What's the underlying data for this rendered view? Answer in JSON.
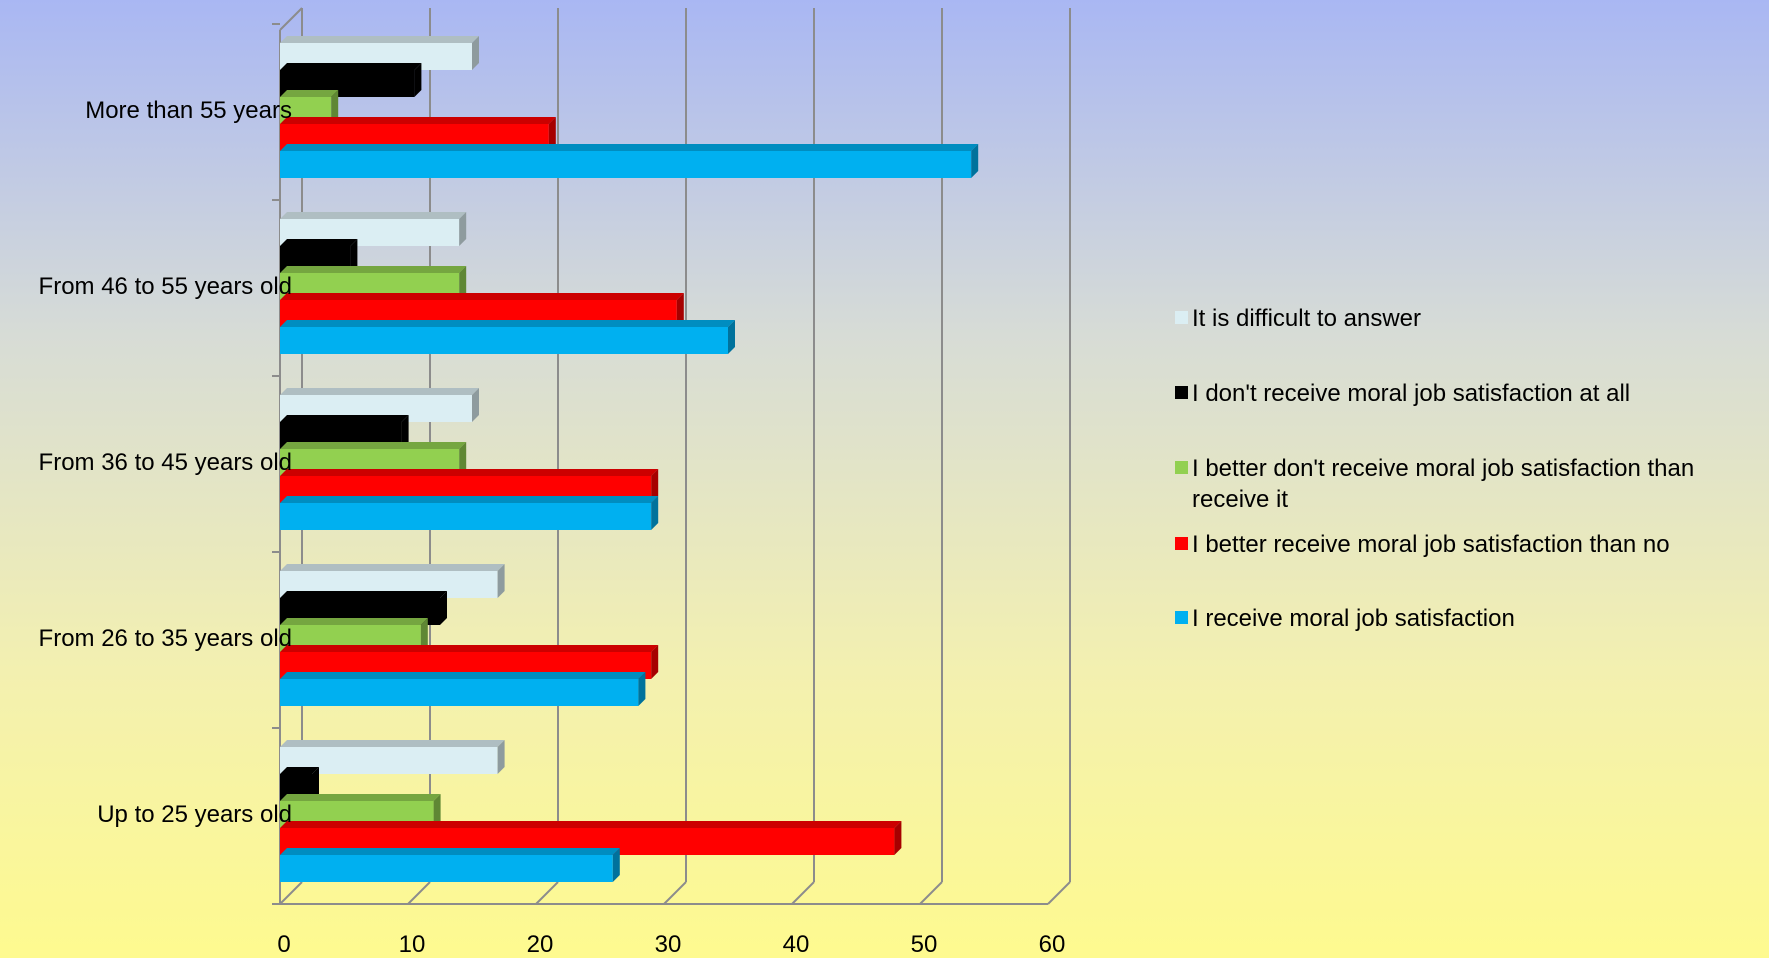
{
  "chart_data": {
    "type": "bar",
    "orientation": "horizontal",
    "three_d": true,
    "title": "",
    "xlabel": "",
    "ylabel": "",
    "xlim": [
      0,
      60
    ],
    "x_ticks": [
      "0",
      "10",
      "20",
      "30",
      "40",
      "50",
      "60"
    ],
    "grid": true,
    "legend_position": "right",
    "categories": [
      "Up to 25 years old",
      "From 26 to 35 years old",
      "From 36 to 45 years old",
      "From 46 to 55 years old",
      "More than 55 years"
    ],
    "series": [
      {
        "name": "I receive moral job satisfaction",
        "color": "#00b0f0",
        "values": [
          26,
          28,
          29,
          35,
          54
        ]
      },
      {
        "name": "I better receive moral job satisfaction than no",
        "color": "#ff0000",
        "values": [
          48,
          29,
          29,
          31,
          21
        ]
      },
      {
        "name": "I better don't receive moral job satisfaction than receive it",
        "color": "#92d050",
        "values": [
          12,
          11,
          14,
          14,
          4
        ]
      },
      {
        "name": "I don't receive moral job satisfaction at all",
        "color": "#000000",
        "values": [
          2.5,
          12.5,
          9.5,
          5.5,
          10.5
        ]
      },
      {
        "name": "It is difficult to answer",
        "color": "#dbeef3",
        "values": [
          17,
          17,
          15,
          14,
          15
        ]
      }
    ],
    "legend": {
      "items": [
        {
          "lines": [
            "It is difficult to answer"
          ],
          "color": "#dbeef3"
        },
        {
          "lines": [
            "I don't receive moral job satisfaction at all"
          ],
          "color": "#000000"
        },
        {
          "lines": [
            "I better don't receive moral job satisfaction than",
            "receive it"
          ],
          "color": "#92d050"
        },
        {
          "lines": [
            "I better receive moral job satisfaction than no"
          ],
          "color": "#ff0000"
        },
        {
          "lines": [
            "I receive moral job satisfaction"
          ],
          "color": "#00b0f0"
        }
      ]
    }
  }
}
